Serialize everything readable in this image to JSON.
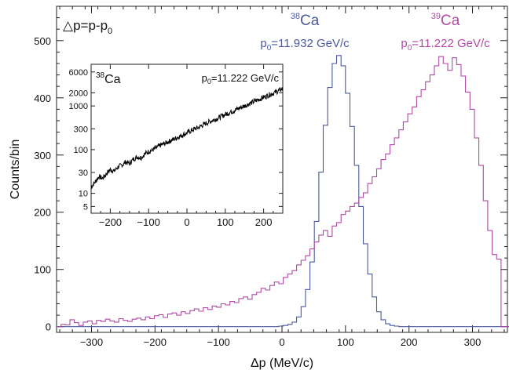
{
  "chart_data": [
    {
      "type": "histogram",
      "xlabel": "Δp (MeV/c)",
      "ylabel": "Counts/bin",
      "xlim": [
        -355,
        355
      ],
      "ylim": [
        -10,
        560
      ],
      "x_ticks": [
        -300,
        -200,
        -100,
        0,
        100,
        200,
        300
      ],
      "x_tick_labels": [
        "−300",
        "−200",
        "−100",
        "0",
        "100",
        "200",
        "300"
      ],
      "y_ticks": [
        0,
        100,
        200,
        300,
        400,
        500
      ],
      "y_tick_labels": [
        "0",
        "100",
        "200",
        "300",
        "400",
        "500"
      ],
      "definition": "△p=p-p",
      "definition_sub": "0",
      "annotations": [
        {
          "isotope_mass": "38",
          "isotope": "Ca",
          "p_label": "p",
          "p_sub": "0",
          "p_value": "=11.932 GeV/c",
          "color": "#4a5a9c"
        },
        {
          "isotope_mass": "39",
          "isotope": "Ca",
          "p_label": "p",
          "p_sub": "0",
          "p_value": "=11.222 GeV/c",
          "color": "#b04aa6"
        }
      ],
      "series": [
        {
          "color": "#4a5a9c",
          "bin_width": 7,
          "bin_start": -355,
          "values": [
            0,
            0,
            0,
            0,
            0,
            0,
            0,
            0,
            0,
            0,
            0,
            0,
            0,
            0,
            0,
            0,
            0,
            0,
            0,
            0,
            0,
            0,
            0,
            0,
            0,
            0,
            0,
            0,
            0,
            0,
            0,
            0,
            0,
            0,
            0,
            0,
            0,
            0,
            0,
            0,
            0,
            0,
            0,
            0,
            0,
            0,
            0,
            0,
            0,
            0,
            1,
            2,
            4,
            8,
            17,
            35,
            65,
            113,
            184,
            270,
            352,
            418,
            460,
            474,
            456,
            408,
            350,
            282,
            210,
            145,
            92,
            52,
            26,
            12,
            5,
            2,
            1,
            0,
            0,
            0,
            0,
            0,
            0,
            0,
            0,
            0,
            0,
            0,
            0,
            0,
            0,
            0,
            0,
            0,
            0,
            0,
            0,
            0,
            0,
            0,
            0,
            0
          ]
        },
        {
          "color": "#b04aa6",
          "bin_width": 7,
          "bin_start": -355,
          "values": [
            0,
            4,
            3,
            12,
            7,
            2,
            8,
            10,
            5,
            11,
            9,
            13,
            10,
            8,
            14,
            11,
            9,
            13,
            15,
            12,
            17,
            14,
            19,
            21,
            16,
            22,
            24,
            20,
            26,
            23,
            28,
            31,
            27,
            33,
            30,
            36,
            34,
            40,
            38,
            44,
            42,
            49,
            52,
            48,
            56,
            60,
            67,
            64,
            72,
            78,
            75,
            86,
            92,
            98,
            108,
            116,
            124,
            136,
            148,
            160,
            168,
            158,
            176,
            182,
            196,
            202,
            210,
            216,
            226,
            234,
            250,
            262,
            276,
            292,
            302,
            318,
            330,
            344,
            358,
            372,
            384,
            402,
            414,
            428,
            440,
            456,
            472,
            460,
            448,
            470,
            458,
            438,
            410,
            380,
            330,
            282,
            220,
            168,
            126,
            118,
            0,
            0
          ]
        }
      ]
    },
    {
      "type": "line",
      "title_mass": "38",
      "title": "Ca",
      "p_label": "p",
      "p_sub": "0",
      "p_value": "=11.222 GeV/c",
      "xlim": [
        -250,
        250
      ],
      "ylim": [
        3.5,
        9000
      ],
      "yscale": "log",
      "x_ticks": [
        -200,
        -100,
        0,
        100,
        200
      ],
      "x_tick_labels": [
        "−200",
        "−100",
        "0",
        "100",
        "200"
      ],
      "y_ticks": [
        5,
        10,
        30,
        100,
        300,
        1000,
        2000,
        6000
      ],
      "y_tick_labels": [
        "5",
        "10",
        "30",
        "100",
        "300",
        "1000",
        "2000",
        "6000"
      ],
      "series": [
        {
          "color": "#000000",
          "x": [
            -250,
            -240,
            -230,
            -220,
            -210,
            -200,
            -190,
            -180,
            -170,
            -160,
            -150,
            -140,
            -130,
            -120,
            -110,
            -100,
            -90,
            -80,
            -70,
            -60,
            -50,
            -40,
            -30,
            -20,
            -10,
            0,
            10,
            20,
            30,
            40,
            50,
            60,
            70,
            80,
            90,
            100,
            110,
            120,
            130,
            140,
            150,
            160,
            170,
            180,
            190,
            200,
            210,
            220,
            230,
            240,
            250
          ],
          "values": [
            14,
            18,
            24,
            22,
            28,
            35,
            32,
            40,
            44,
            52,
            48,
            60,
            68,
            65,
            80,
            90,
            98,
            110,
            125,
            135,
            150,
            165,
            180,
            200,
            220,
            240,
            270,
            300,
            320,
            360,
            400,
            440,
            480,
            520,
            580,
            640,
            700,
            760,
            840,
            920,
            1000,
            1100,
            1200,
            1320,
            1440,
            1580,
            1720,
            1880,
            2050,
            2250,
            2500
          ]
        }
      ]
    }
  ]
}
